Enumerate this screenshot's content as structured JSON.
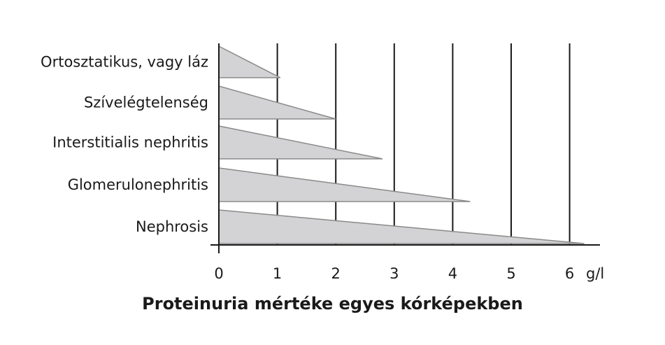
{
  "chart_data": {
    "type": "bar",
    "title": "Proteinuria mértéke egyes kórképekben",
    "unit": "g/l",
    "xlim": [
      0,
      6.5
    ],
    "ticks": [
      0,
      1,
      2,
      3,
      4,
      5,
      6
    ],
    "tick_labels": [
      "0",
      "1",
      "2",
      "3",
      "4",
      "5",
      "6"
    ],
    "grid": true,
    "categories": [
      "Ortosztatikus, vagy láz",
      "Szívelégtelenség",
      "Interstitialis nephritis",
      "Glomerulonephritis",
      "Nephrosis"
    ],
    "values": [
      1.05,
      2.0,
      2.8,
      4.3,
      6.25
    ],
    "fill_color": "#d3d3d5",
    "edge_color": "#8a8a8a"
  }
}
